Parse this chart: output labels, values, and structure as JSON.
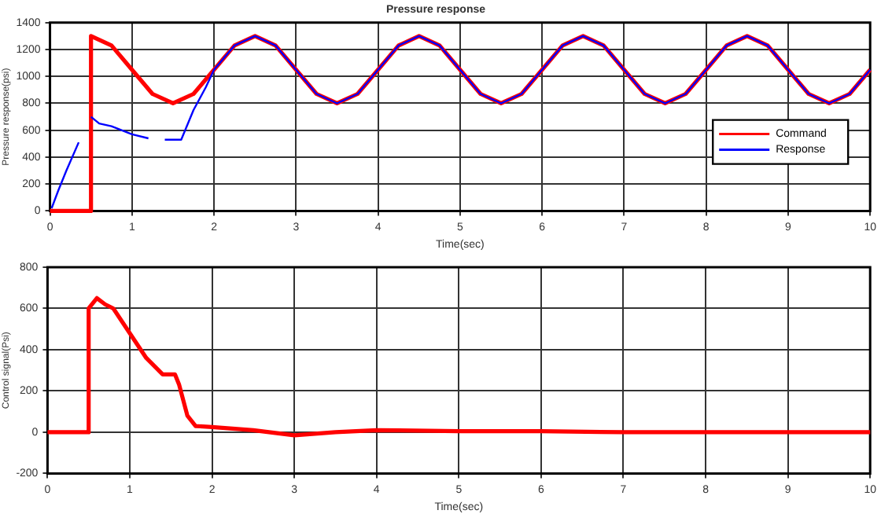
{
  "chart_data": [
    {
      "type": "line",
      "title": "Pressure response",
      "xlabel": "Time(sec)",
      "ylabel": "Pressure response(psi)",
      "xlim": [
        0,
        10
      ],
      "xticks": [
        0,
        1,
        2,
        3,
        4,
        5,
        6,
        7,
        8,
        9,
        10
      ],
      "ylim": [
        0,
        1400
      ],
      "yticks": [
        0,
        200,
        400,
        600,
        800,
        1000,
        1200,
        1400
      ],
      "grid": true,
      "line_style": "solid",
      "legend": "right",
      "series": [
        {
          "name": "Command",
          "color": "#ff0000",
          "x": [
            0,
            0.5,
            0.5,
            0.75,
            1,
            1.25,
            1.5,
            1.75,
            2,
            2.25,
            2.5,
            2.75,
            3,
            3.25,
            3.5,
            3.75,
            4,
            4.25,
            4.5,
            4.75,
            5,
            5.25,
            5.5,
            5.75,
            6,
            6.25,
            6.5,
            6.75,
            7,
            7.25,
            7.5,
            7.75,
            8,
            8.25,
            8.5,
            8.75,
            9,
            9.25,
            9.5,
            9.75,
            10
          ],
          "values": [
            0,
            0,
            1300,
            1230,
            1050,
            870,
            800,
            870,
            1050,
            1230,
            1300,
            1230,
            1050,
            870,
            800,
            870,
            1050,
            1230,
            1300,
            1230,
            1050,
            870,
            800,
            870,
            1050,
            1230,
            1300,
            1230,
            1050,
            870,
            800,
            870,
            1050,
            1230,
            1300,
            1230,
            1050,
            870,
            800,
            870,
            1050
          ]
        },
        {
          "name": "Response",
          "color": "#0000ff",
          "x": [
            0.02,
            0.1,
            0.2,
            0.35,
            0.42,
            0.5,
            0.6,
            0.75,
            1,
            1.2,
            1.3,
            1.4,
            1.6,
            1.75,
            1.9,
            2,
            2.25,
            2.5,
            2.75,
            3,
            3.25,
            3.5,
            3.75,
            4,
            4.25,
            4.5,
            4.75,
            5,
            5.25,
            5.5,
            5.75,
            6,
            6.25,
            6.5,
            6.75,
            7,
            7.25,
            7.5,
            7.75,
            8,
            8.25,
            8.5,
            8.75,
            9,
            9.25,
            9.5,
            9.75,
            10
          ],
          "values": [
            20,
            150,
            300,
            510,
            null,
            700,
            650,
            630,
            570,
            540,
            null,
            530,
            530,
            750,
            920,
            1050,
            1230,
            1300,
            1230,
            1050,
            870,
            800,
            870,
            1050,
            1230,
            1300,
            1230,
            1050,
            870,
            800,
            870,
            1050,
            1230,
            1300,
            1230,
            1050,
            870,
            800,
            870,
            1050,
            1230,
            1300,
            1230,
            1050,
            870,
            800,
            870,
            1050
          ]
        }
      ]
    },
    {
      "type": "line",
      "xlabel": "Time(sec)",
      "ylabel": "Control signal(Psi)",
      "xlim": [
        0,
        10
      ],
      "xticks": [
        0,
        1,
        2,
        3,
        4,
        5,
        6,
        7,
        8,
        9,
        10
      ],
      "ylim": [
        -200,
        800
      ],
      "yticks": [
        -200,
        0,
        200,
        400,
        600,
        800
      ],
      "grid": true,
      "line_style": "solid",
      "legend": false,
      "series": [
        {
          "color": "#ff0000",
          "x": [
            0,
            0.5,
            0.5,
            0.6,
            0.7,
            0.8,
            1,
            1.2,
            1.4,
            1.55,
            1.6,
            1.7,
            1.8,
            2,
            2.5,
            3,
            3.5,
            4,
            5,
            6,
            7,
            8,
            9,
            10
          ],
          "values": [
            0,
            0,
            600,
            650,
            620,
            600,
            480,
            360,
            280,
            280,
            230,
            80,
            30,
            25,
            10,
            -15,
            0,
            10,
            5,
            5,
            0,
            0,
            0,
            0
          ]
        }
      ]
    }
  ]
}
